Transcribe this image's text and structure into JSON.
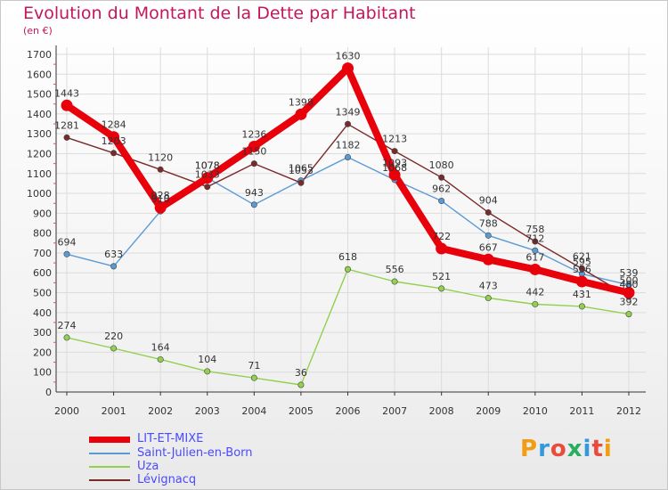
{
  "header": {
    "title": "Evolution du Montant de la Dette par Habitant",
    "unit": "(en €)"
  },
  "logo": {
    "text": "Proxiti",
    "colors": [
      "#f39c12",
      "#3498db",
      "#e74c3c",
      "#27ae60",
      "#3498db",
      "#e74c3c",
      "#f39c12"
    ]
  },
  "chart_data": {
    "type": "line",
    "title": "Evolution du Montant de la Dette par Habitant",
    "ylabel": "(en €)",
    "xlabel": "",
    "categories": [
      "2000",
      "2001",
      "2002",
      "2003",
      "2004",
      "2005",
      "2006",
      "2007",
      "2008",
      "2009",
      "2010",
      "2011",
      "2012"
    ],
    "ylim": [
      0,
      1700
    ],
    "yticks": [
      0,
      100,
      200,
      300,
      400,
      500,
      600,
      700,
      800,
      900,
      1000,
      1100,
      1200,
      1300,
      1400,
      1500,
      1600,
      1700
    ],
    "grid": true,
    "legend_position": "bottom-left",
    "series": [
      {
        "name": "LIT-ET-MIXE",
        "color": "#e8000b",
        "values": [
          1443,
          1284,
          928,
          1078,
          1236,
          1398,
          1630,
          1093,
          722,
          667,
          617,
          556,
          500
        ]
      },
      {
        "name": "Saint-Julien-en-Born",
        "color": "#5b9bd5",
        "values": [
          694,
          633,
          910,
          1078,
          943,
          1065,
          1182,
          1068,
          962,
          788,
          712,
          595,
          539
        ]
      },
      {
        "name": "Uza",
        "color": "#92d050",
        "values": [
          274,
          220,
          164,
          104,
          71,
          36,
          618,
          556,
          521,
          473,
          442,
          431,
          392
        ]
      },
      {
        "name": "Lévignacq",
        "color": "#7b2a2a",
        "values": [
          1281,
          1203,
          1120,
          1033,
          1150,
          1053,
          1349,
          1213,
          1080,
          904,
          758,
          621,
          480
        ]
      }
    ]
  }
}
